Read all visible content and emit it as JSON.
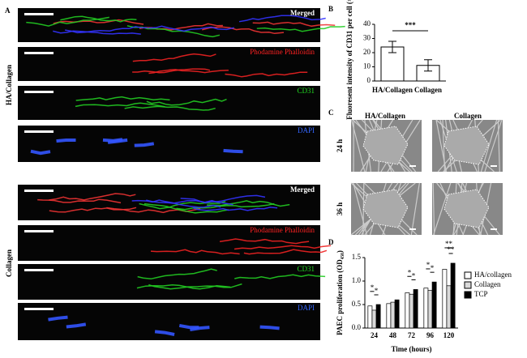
{
  "panel_labels": [
    "A",
    "B",
    "C",
    "D"
  ],
  "panel_a": {
    "groups": [
      {
        "label": "HA/Collagen",
        "channels": [
          "Merged",
          "Phodamine Phalloidin",
          "CD31",
          "DAPI"
        ]
      },
      {
        "label": "Collagen",
        "channels": [
          "Merged",
          "Phodamine Phalloidin",
          "CD31",
          "DAPI"
        ]
      }
    ]
  },
  "panel_c": {
    "columns": [
      "HA/Collagen",
      "Collagen"
    ],
    "rows": [
      "24 h",
      "36 h"
    ]
  },
  "chart_data": [
    {
      "type": "bar",
      "ylabel": "Fluoresent intensity of CD31 per cell (×10⁴)",
      "categories": [
        "HA/Collagen",
        "Collagen"
      ],
      "values": [
        24,
        11
      ],
      "errors": [
        4,
        4
      ],
      "color": "#ffffff",
      "ylim": [
        0,
        40
      ],
      "yticks": [
        0,
        10,
        20,
        30,
        40
      ],
      "annotations": [
        "***"
      ]
    },
    {
      "type": "grouped_bar",
      "xlabel": "Time (hours)",
      "ylabel": "PAEC proliferation (OD₄₅₀)",
      "categories": [
        "24",
        "48",
        "72",
        "96",
        "120"
      ],
      "series": [
        {
          "name": "HA/collagen",
          "color": "#ffffff",
          "values": [
            0.47,
            0.52,
            0.75,
            0.85,
            1.25
          ]
        },
        {
          "name": "Collagen",
          "color": "#d9d9d9",
          "values": [
            0.38,
            0.55,
            0.72,
            0.8,
            0.9
          ]
        },
        {
          "name": "TCP",
          "color": "#000000",
          "values": [
            0.5,
            0.6,
            0.82,
            0.98,
            1.38
          ]
        }
      ],
      "ylim": [
        0,
        1.5
      ],
      "yticks": [
        {
          "value": 0,
          "label": "0.0"
        },
        0.5,
        {
          "value": 1,
          "label": "1.0"
        },
        1.5
      ],
      "annotations": [
        "*",
        "*",
        "*",
        "*",
        "*",
        "*",
        "**",
        "**"
      ]
    }
  ]
}
